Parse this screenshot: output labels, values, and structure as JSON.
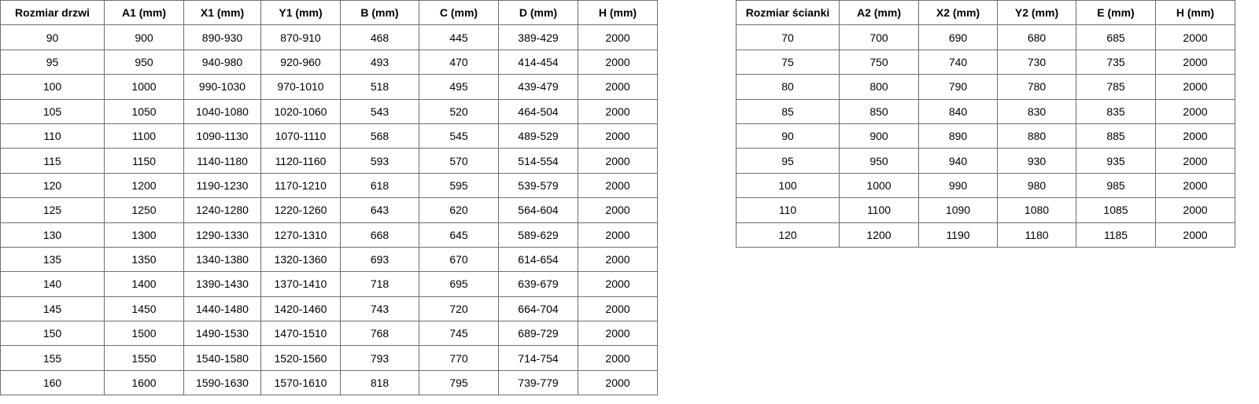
{
  "doors_table": {
    "headers": [
      "Rozmiar drzwi",
      "A1 (mm)",
      "X1 (mm)",
      "Y1 (mm)",
      "B (mm)",
      "C (mm)",
      "D (mm)",
      "H (mm)"
    ],
    "rows": [
      [
        "90",
        "900",
        "890-930",
        "870-910",
        "468",
        "445",
        "389-429",
        "2000"
      ],
      [
        "95",
        "950",
        "940-980",
        "920-960",
        "493",
        "470",
        "414-454",
        "2000"
      ],
      [
        "100",
        "1000",
        "990-1030",
        "970-1010",
        "518",
        "495",
        "439-479",
        "2000"
      ],
      [
        "105",
        "1050",
        "1040-1080",
        "1020-1060",
        "543",
        "520",
        "464-504",
        "2000"
      ],
      [
        "110",
        "1100",
        "1090-1130",
        "1070-1110",
        "568",
        "545",
        "489-529",
        "2000"
      ],
      [
        "115",
        "1150",
        "1140-1180",
        "1120-1160",
        "593",
        "570",
        "514-554",
        "2000"
      ],
      [
        "120",
        "1200",
        "1190-1230",
        "1170-1210",
        "618",
        "595",
        "539-579",
        "2000"
      ],
      [
        "125",
        "1250",
        "1240-1280",
        "1220-1260",
        "643",
        "620",
        "564-604",
        "2000"
      ],
      [
        "130",
        "1300",
        "1290-1330",
        "1270-1310",
        "668",
        "645",
        "589-629",
        "2000"
      ],
      [
        "135",
        "1350",
        "1340-1380",
        "1320-1360",
        "693",
        "670",
        "614-654",
        "2000"
      ],
      [
        "140",
        "1400",
        "1390-1430",
        "1370-1410",
        "718",
        "695",
        "639-679",
        "2000"
      ],
      [
        "145",
        "1450",
        "1440-1480",
        "1420-1460",
        "743",
        "720",
        "664-704",
        "2000"
      ],
      [
        "150",
        "1500",
        "1490-1530",
        "1470-1510",
        "768",
        "745",
        "689-729",
        "2000"
      ],
      [
        "155",
        "1550",
        "1540-1580",
        "1520-1560",
        "793",
        "770",
        "714-754",
        "2000"
      ],
      [
        "160",
        "1600",
        "1590-1630",
        "1570-1610",
        "818",
        "795",
        "739-779",
        "2000"
      ]
    ]
  },
  "wall_table": {
    "headers": [
      "Rozmiar ścianki",
      "A2 (mm)",
      "X2 (mm)",
      "Y2 (mm)",
      "E (mm)",
      "H (mm)"
    ],
    "rows": [
      [
        "70",
        "700",
        "690",
        "680",
        "685",
        "2000"
      ],
      [
        "75",
        "750",
        "740",
        "730",
        "735",
        "2000"
      ],
      [
        "80",
        "800",
        "790",
        "780",
        "785",
        "2000"
      ],
      [
        "85",
        "850",
        "840",
        "830",
        "835",
        "2000"
      ],
      [
        "90",
        "900",
        "890",
        "880",
        "885",
        "2000"
      ],
      [
        "95",
        "950",
        "940",
        "930",
        "935",
        "2000"
      ],
      [
        "100",
        "1000",
        "990",
        "980",
        "985",
        "2000"
      ],
      [
        "110",
        "1100",
        "1090",
        "1080",
        "1085",
        "2000"
      ],
      [
        "120",
        "1200",
        "1190",
        "1180",
        "1185",
        "2000"
      ]
    ]
  }
}
